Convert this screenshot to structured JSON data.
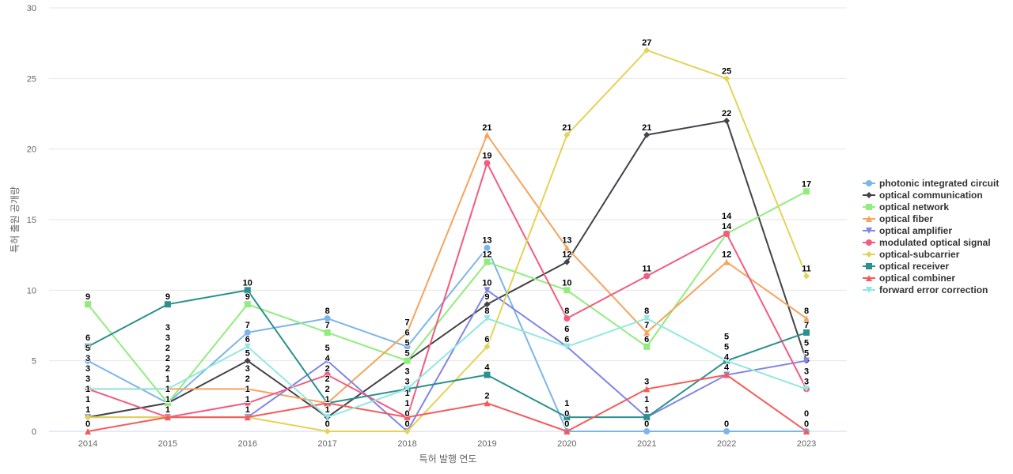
{
  "chart_data": {
    "type": "line",
    "title": "",
    "xlabel": "특허 발행 연도",
    "ylabel": "특허 출원 공개량",
    "x": [
      "2014",
      "2015",
      "2016",
      "2017",
      "2018",
      "2019",
      "2020",
      "2021",
      "2022",
      "2023"
    ],
    "ylim": [
      0,
      30
    ],
    "yticks": [
      "0",
      "5",
      "10",
      "15",
      "20",
      "25",
      "30"
    ],
    "grid": true,
    "legend_position": "right",
    "series": [
      {
        "name": "photonic integrated circuit",
        "color": "#7cb5ec",
        "marker": "circle",
        "values": [
          5,
          2,
          7,
          8,
          6,
          13,
          0,
          0,
          0,
          0
        ]
      },
      {
        "name": "optical communication",
        "color": "#434348",
        "marker": "diamond",
        "values": [
          1,
          2,
          5,
          1,
          5,
          9,
          12,
          21,
          22,
          5
        ]
      },
      {
        "name": "optical network",
        "color": "#90ed7d",
        "marker": "square",
        "values": [
          9,
          2,
          9,
          7,
          5,
          12,
          10,
          6,
          14,
          17
        ]
      },
      {
        "name": "optical fiber",
        "color": "#f7a35c",
        "marker": "triangle",
        "values": [
          3,
          3,
          3,
          2,
          7,
          21,
          13,
          7,
          12,
          8
        ]
      },
      {
        "name": "optical amplifier",
        "color": "#8085e9",
        "marker": "triangle-down",
        "values": [
          1,
          1,
          1,
          5,
          0,
          10,
          6,
          1,
          4,
          5
        ]
      },
      {
        "name": "modulated optical signal",
        "color": "#f15c80",
        "marker": "circle",
        "values": [
          3,
          1,
          2,
          4,
          1,
          19,
          8,
          11,
          14,
          3
        ]
      },
      {
        "name": "optical-subcarrier",
        "color": "#e4d354",
        "marker": "diamond",
        "values": [
          1,
          1,
          1,
          0,
          0,
          6,
          21,
          27,
          25,
          11
        ]
      },
      {
        "name": "optical receiver",
        "color": "#2b908f",
        "marker": "square",
        "values": [
          6,
          9,
          10,
          2,
          3,
          4,
          1,
          1,
          5,
          7
        ]
      },
      {
        "name": "optical combiner",
        "color": "#f45b5b",
        "marker": "triangle",
        "values": [
          0,
          1,
          1,
          2,
          1,
          2,
          0,
          3,
          4,
          0
        ]
      },
      {
        "name": "forward error correction",
        "color": "#91e8e1",
        "marker": "triangle-down",
        "values": [
          3,
          3,
          6,
          1,
          3,
          8,
          6,
          8,
          5,
          3
        ]
      }
    ]
  }
}
